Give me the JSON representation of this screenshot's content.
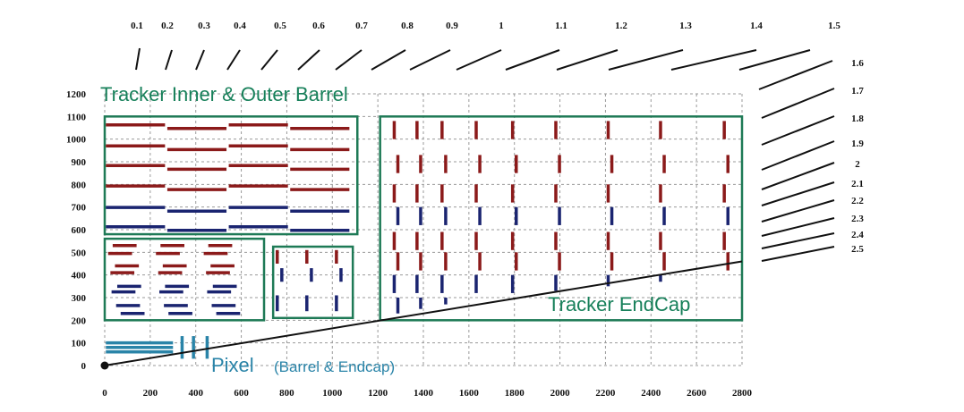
{
  "axes": {
    "x_ticks": [
      "0",
      "200",
      "400",
      "600",
      "800",
      "1000",
      "1200",
      "1400",
      "1600",
      "1800",
      "2000",
      "2200",
      "2400",
      "2600",
      "2800"
    ],
    "y_ticks": [
      "0",
      "100",
      "200",
      "300",
      "400",
      "500",
      "600",
      "700",
      "800",
      "900",
      "1000",
      "1100",
      "1200"
    ]
  },
  "eta_labels": [
    "0.1",
    "0.2",
    "0.3",
    "0.4",
    "0.5",
    "0.6",
    "0.7",
    "0.8",
    "0.9",
    "1",
    "1.1",
    "1.2",
    "1.3",
    "1.4",
    "1.5",
    "1.6",
    "1.7",
    "1.8",
    "1.9",
    "2",
    "2.1",
    "2.2",
    "2.3",
    "2.4",
    "2.5"
  ],
  "regions": {
    "barrel": "Tracker Inner & Outer Barrel",
    "endcap": "Tracker EndCap",
    "pixel_main": "Pixel",
    "pixel_sub": "(Barrel & Endcap)"
  },
  "colors": {
    "region_box": "#1e7a56",
    "red_module": "#8b1a1a",
    "blue_module": "#1a2470",
    "pixel_module": "#2a84a8",
    "grid": "#9a9a9a",
    "eta_line": "#111111"
  }
}
